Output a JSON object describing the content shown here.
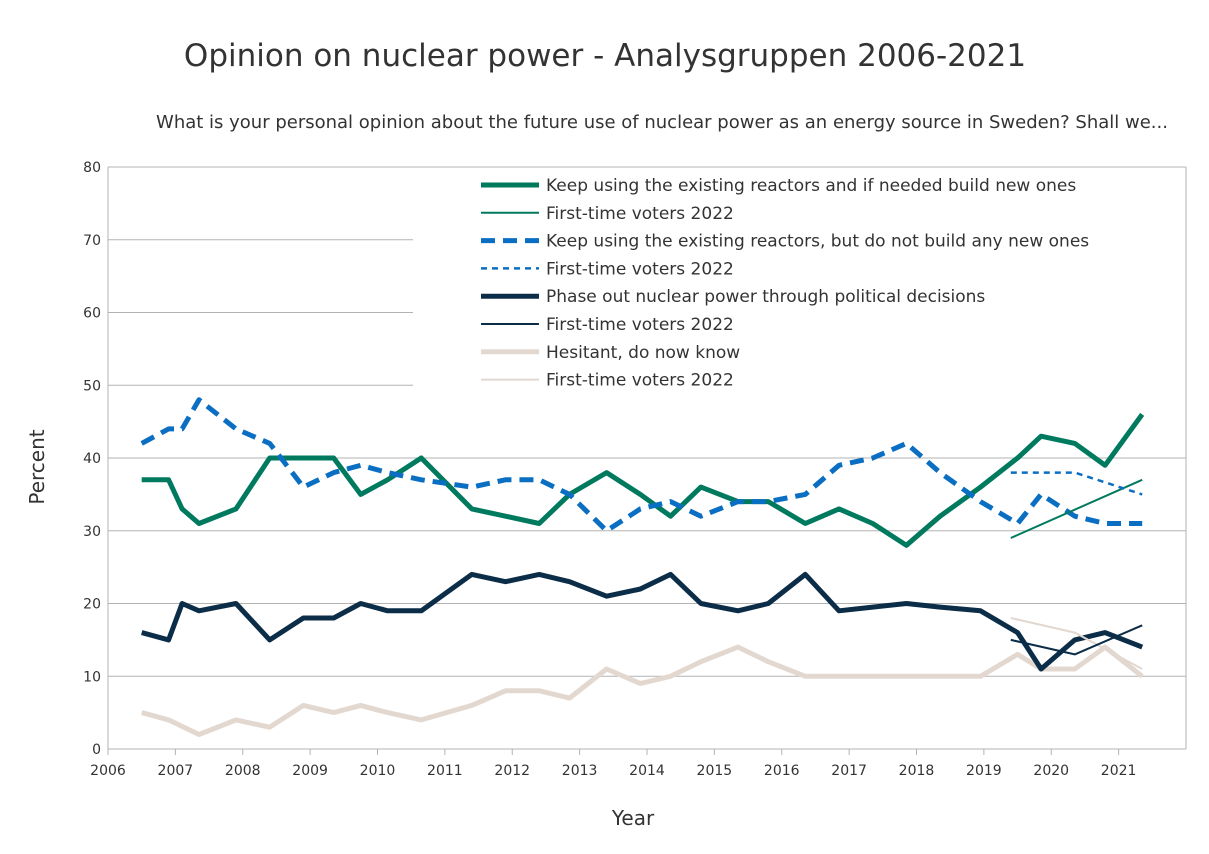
{
  "chart_data": {
    "type": "line",
    "title": "Opinion on nuclear power - Analysgruppen 2006-2021",
    "subtitle": "What is your personal opinion about the future use of nuclear power as an energy source in Sweden? Shall we...",
    "xlabel": "Year",
    "ylabel": "Percent",
    "xlim": [
      2006,
      2022
    ],
    "ylim": [
      0,
      80
    ],
    "x_ticks": [
      "2006",
      "2007",
      "2008",
      "2009",
      "2010",
      "2011",
      "2012",
      "2013",
      "2014",
      "2015",
      "2016",
      "2017",
      "2018",
      "2019",
      "2020",
      "2021"
    ],
    "y_ticks": [
      "0",
      "10",
      "20",
      "30",
      "40",
      "50",
      "60",
      "70",
      "80"
    ],
    "legend_position": "top-right",
    "series": [
      {
        "name": "Keep using the existing reactors and if needed build new ones",
        "color": "#007a5e",
        "style": "thick",
        "x": [
          2006.5,
          2006.9,
          2007.1,
          2007.35,
          2007.9,
          2008.4,
          2008.9,
          2009.35,
          2009.75,
          2010.15,
          2010.65,
          2011.4,
          2011.9,
          2012.4,
          2012.85,
          2013.4,
          2013.9,
          2014.35,
          2014.8,
          2015.35,
          2015.8,
          2016.35,
          2016.85,
          2017.35,
          2017.85,
          2018.35,
          2018.95,
          2019.5,
          2019.85,
          2020.35,
          2020.8,
          2021.35
        ],
        "values": [
          37,
          37,
          33,
          31,
          33,
          40,
          40,
          40,
          35,
          37,
          40,
          33,
          32,
          31,
          35,
          38,
          35,
          32,
          36,
          34,
          34,
          31,
          33,
          31,
          28,
          32,
          36,
          40,
          43,
          42,
          39,
          46
        ]
      },
      {
        "name": "First-time voters 2022",
        "color": "#007a5e",
        "style": "thin",
        "x": [
          2019.4,
          2021.35
        ],
        "values": [
          29,
          37
        ]
      },
      {
        "name": "Keep using the existing reactors, but do not build any new ones",
        "color": "#0a6fc2",
        "style": "thick-dash",
        "x": [
          2006.5,
          2006.9,
          2007.1,
          2007.35,
          2007.9,
          2008.4,
          2008.9,
          2009.35,
          2009.75,
          2010.15,
          2010.65,
          2011.4,
          2011.9,
          2012.4,
          2012.85,
          2013.4,
          2013.9,
          2014.35,
          2014.8,
          2015.35,
          2015.8,
          2016.35,
          2016.85,
          2017.35,
          2017.85,
          2018.35,
          2018.95,
          2019.5,
          2019.85,
          2020.35,
          2020.8,
          2021.35
        ],
        "values": [
          42,
          44,
          44,
          48,
          44,
          42,
          36,
          38,
          39,
          38,
          37,
          36,
          37,
          37,
          35,
          30,
          33,
          34,
          32,
          34,
          34,
          35,
          39,
          40,
          42,
          38,
          34,
          31,
          35,
          32,
          31,
          31
        ]
      },
      {
        "name": "First-time voters 2022",
        "color": "#0a6fc2",
        "style": "thin-dot",
        "x": [
          2019.4,
          2020.35,
          2021.35
        ],
        "values": [
          38,
          38,
          35
        ]
      },
      {
        "name": "Phase out nuclear power through political decisions",
        "color": "#0c2d48",
        "style": "thick",
        "x": [
          2006.5,
          2006.9,
          2007.1,
          2007.35,
          2007.9,
          2008.4,
          2008.9,
          2009.35,
          2009.75,
          2010.15,
          2010.65,
          2011.4,
          2011.9,
          2012.4,
          2012.85,
          2013.4,
          2013.9,
          2014.35,
          2014.8,
          2015.35,
          2015.8,
          2016.35,
          2016.85,
          2017.35,
          2017.85,
          2018.35,
          2018.95,
          2019.5,
          2019.85,
          2020.35,
          2020.8,
          2021.35
        ],
        "values": [
          16,
          15,
          20,
          19,
          20,
          15,
          18,
          18,
          20,
          19,
          19,
          24,
          23,
          24,
          23,
          21,
          22,
          24,
          20,
          19,
          20,
          24,
          19,
          19.5,
          20,
          19.5,
          19,
          16,
          11,
          15,
          16,
          14
        ]
      },
      {
        "name": "First-time voters 2022",
        "color": "#0c2d48",
        "style": "thin",
        "x": [
          2019.4,
          2020.35,
          2021.35
        ],
        "values": [
          15,
          13,
          17
        ]
      },
      {
        "name": "Hesitant, do now know",
        "color": "#e3d8d0",
        "style": "thick",
        "x": [
          2006.5,
          2006.9,
          2007.35,
          2007.9,
          2008.4,
          2008.9,
          2009.35,
          2009.75,
          2010.15,
          2010.65,
          2011.4,
          2011.9,
          2012.4,
          2012.85,
          2013.4,
          2013.9,
          2014.35,
          2014.8,
          2015.35,
          2015.8,
          2016.35,
          2016.85,
          2017.35,
          2017.85,
          2018.35,
          2018.95,
          2019.5,
          2019.85,
          2020.35,
          2020.8,
          2021.35
        ],
        "values": [
          5,
          4,
          2,
          4,
          3,
          6,
          5,
          6,
          5,
          4,
          6,
          8,
          8,
          7,
          11,
          9,
          10,
          12,
          14,
          12,
          10,
          10,
          10,
          10,
          10,
          10,
          13,
          11,
          11,
          14,
          10
        ]
      },
      {
        "name": "First-time voters 2022",
        "color": "#e3d8d0",
        "style": "thin",
        "x": [
          2019.4,
          2020.35,
          2021.35
        ],
        "values": [
          18,
          16,
          11
        ]
      }
    ]
  }
}
